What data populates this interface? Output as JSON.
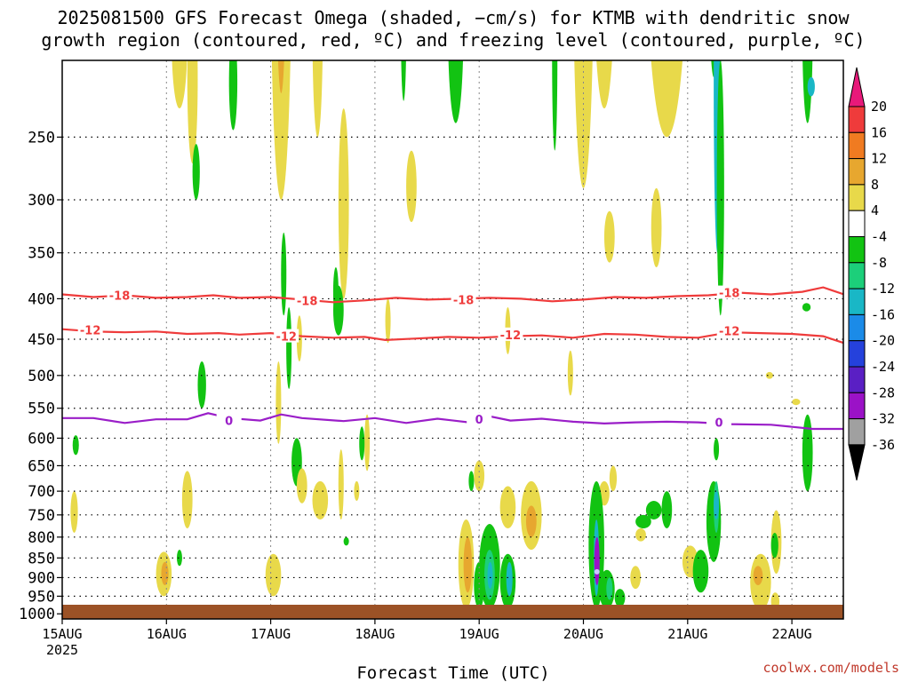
{
  "chart_data": {
    "type": "heatmap",
    "title_lines": [
      "2025081500 GFS Forecast Omega (shaded, −cm/s) for KTMB with dendritic snow",
      "growth region (contoured, red, ºC) and freezing level (contoured, purple, ºC)"
    ],
    "xlabel": "Forecast Time (UTC)",
    "credit": "coolwx.com/models",
    "year_label": "2025",
    "x_ticks": [
      "15AUG",
      "16AUG",
      "17AUG",
      "18AUG",
      "19AUG",
      "20AUG",
      "21AUG",
      "22AUG"
    ],
    "x_range_days": [
      0,
      7.5
    ],
    "y_ticks": [
      250,
      300,
      350,
      400,
      450,
      500,
      550,
      600,
      650,
      700,
      750,
      800,
      850,
      900,
      950,
      1000
    ],
    "y_range_hpa": [
      200,
      1015
    ],
    "y_scale": "log",
    "grid": true,
    "colorbar": {
      "labels": [
        "20",
        "16",
        "12",
        "8",
        "4",
        "-4",
        "-8",
        "-12",
        "-16",
        "-20",
        "-24",
        "-28",
        "-32",
        "-36"
      ],
      "colors": [
        "#e8197a",
        "#ef3b3b",
        "#f07b21",
        "#e7a72f",
        "#e8d94a",
        "#ffffff",
        "#12c312",
        "#1ccf7a",
        "#19b7c6",
        "#1b8be8",
        "#2541dc",
        "#5a1fc4",
        "#9b12c7",
        "#a0a0a0",
        "#000000"
      ]
    },
    "contours": [
      {
        "name": "-18",
        "color": "#ef3b3b",
        "points": [
          [
            0,
            395
          ],
          [
            0.3,
            398
          ],
          [
            0.6,
            396
          ],
          [
            0.9,
            399
          ],
          [
            1.2,
            398
          ],
          [
            1.45,
            396
          ],
          [
            1.7,
            399
          ],
          [
            2.0,
            398
          ],
          [
            2.3,
            401
          ],
          [
            2.6,
            404
          ],
          [
            2.9,
            402
          ],
          [
            3.2,
            399
          ],
          [
            3.5,
            401
          ],
          [
            3.8,
            400
          ],
          [
            4.1,
            399
          ],
          [
            4.4,
            400
          ],
          [
            4.7,
            403
          ],
          [
            5.0,
            401
          ],
          [
            5.3,
            398
          ],
          [
            5.6,
            399
          ],
          [
            5.9,
            397
          ],
          [
            6.2,
            396
          ],
          [
            6.5,
            393
          ],
          [
            6.8,
            395
          ],
          [
            7.1,
            392
          ],
          [
            7.3,
            387
          ],
          [
            7.4,
            391
          ],
          [
            7.5,
            395
          ]
        ],
        "labels": [
          [
            0.55,
            396
          ],
          [
            2.35,
            402
          ],
          [
            3.85,
            401
          ],
          [
            6.4,
            393
          ]
        ]
      },
      {
        "name": "-12",
        "color": "#ef3b3b",
        "points": [
          [
            0,
            437
          ],
          [
            0.3,
            440
          ],
          [
            0.6,
            441
          ],
          [
            0.9,
            440
          ],
          [
            1.2,
            443
          ],
          [
            1.5,
            442
          ],
          [
            1.7,
            444
          ],
          [
            2.0,
            442
          ],
          [
            2.3,
            446
          ],
          [
            2.6,
            448
          ],
          [
            2.9,
            447
          ],
          [
            3.1,
            451
          ],
          [
            3.4,
            449
          ],
          [
            3.7,
            447
          ],
          [
            4.0,
            448
          ],
          [
            4.3,
            446
          ],
          [
            4.6,
            445
          ],
          [
            4.9,
            448
          ],
          [
            5.2,
            443
          ],
          [
            5.5,
            444
          ],
          [
            5.8,
            447
          ],
          [
            6.1,
            448
          ],
          [
            6.4,
            441
          ],
          [
            6.7,
            442
          ],
          [
            7.0,
            443
          ],
          [
            7.3,
            446
          ],
          [
            7.5,
            455
          ]
        ],
        "labels": [
          [
            0.27,
            438
          ],
          [
            2.15,
            446
          ],
          [
            4.3,
            444
          ],
          [
            6.4,
            439
          ]
        ]
      },
      {
        "name": "0",
        "color": "#9a1ec8",
        "points": [
          [
            0,
            566
          ],
          [
            0.3,
            566
          ],
          [
            0.6,
            574
          ],
          [
            0.9,
            568
          ],
          [
            1.2,
            568
          ],
          [
            1.4,
            558
          ],
          [
            1.6,
            566
          ],
          [
            1.9,
            570
          ],
          [
            2.1,
            560
          ],
          [
            2.3,
            566
          ],
          [
            2.7,
            571
          ],
          [
            3.0,
            566
          ],
          [
            3.3,
            574
          ],
          [
            3.6,
            567
          ],
          [
            3.9,
            573
          ],
          [
            4.1,
            563
          ],
          [
            4.3,
            570
          ],
          [
            4.6,
            567
          ],
          [
            4.9,
            572
          ],
          [
            5.2,
            575
          ],
          [
            5.5,
            573
          ],
          [
            5.8,
            572
          ],
          [
            6.1,
            573
          ],
          [
            6.4,
            576
          ],
          [
            6.8,
            577
          ],
          [
            7.2,
            584
          ],
          [
            7.5,
            584
          ]
        ],
        "labels": [
          [
            1.6,
            570
          ],
          [
            4.0,
            568
          ],
          [
            6.3,
            573
          ]
        ]
      }
    ]
  }
}
